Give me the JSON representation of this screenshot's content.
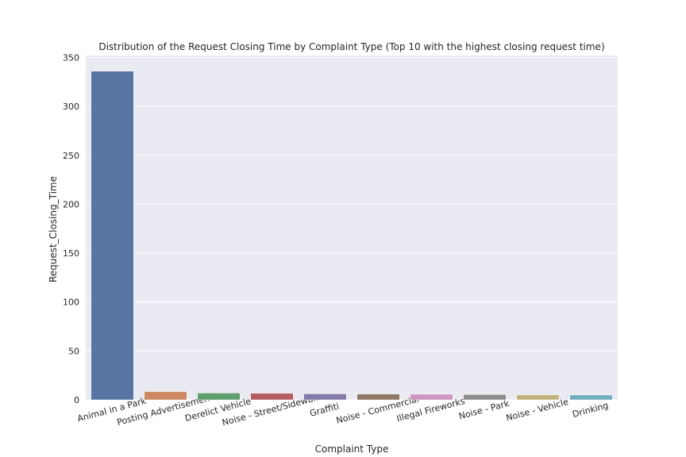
{
  "chart_data": {
    "type": "bar",
    "title": "Distribution of the Request Closing Time by Complaint Type (Top 10 with the highest closing request time)",
    "xlabel": "Complaint Type",
    "ylabel": "Request_Closing_Time",
    "categories": [
      "Animal in a Park",
      "Posting Advertisement",
      "Derelict Vehicle",
      "Noise - Street/Sidewalk",
      "Graffiti",
      "Noise - Commercial",
      "Illegal Fireworks",
      "Noise - Park",
      "Noise - Vehicle",
      "Drinking"
    ],
    "values": [
      336,
      8.5,
      7.0,
      6.8,
      6.2,
      6.0,
      5.8,
      5.5,
      5.2,
      5.0
    ],
    "colors": [
      "#5975a4",
      "#cc8963",
      "#5f9e6e",
      "#b55d60",
      "#857aab",
      "#8d7866",
      "#d095bf",
      "#8c8c8c",
      "#c1b37f",
      "#71aec0"
    ],
    "ylim": [
      0,
      352
    ],
    "yticks": [
      0,
      50,
      100,
      150,
      200,
      250,
      300,
      350
    ],
    "grid": true,
    "background_color": "#eaeaf2",
    "grid_color": "#ffffff",
    "legend": "none"
  }
}
